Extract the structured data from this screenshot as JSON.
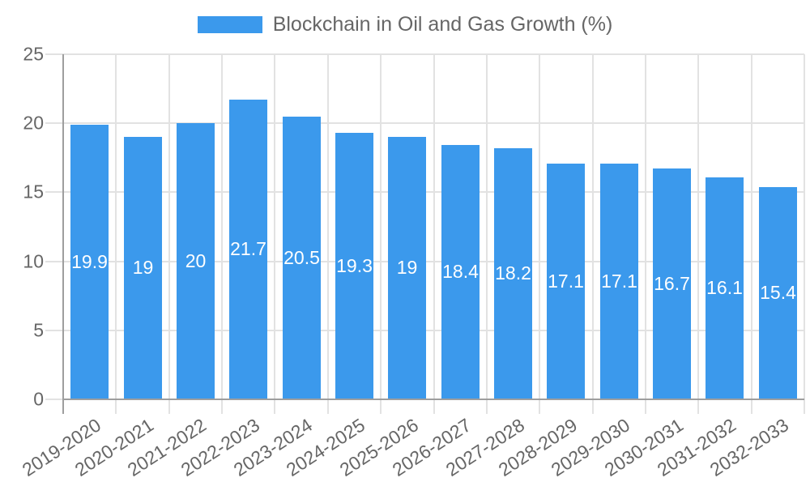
{
  "chart_data": {
    "type": "bar",
    "title": "Blockchain in Oil and Gas Growth (%)",
    "legend": {
      "position": "top",
      "entries": [
        "Blockchain in Oil and Gas Growth (%)"
      ]
    },
    "categories": [
      "2019-2020",
      "2020-2021",
      "2021-2022",
      "2022-2023",
      "2023-2024",
      "2024-2025",
      "2025-2026",
      "2026-2027",
      "2027-2028",
      "2028-2029",
      "2029-2030",
      "2030-2031",
      "2031-2032",
      "2032-2033"
    ],
    "values": [
      19.9,
      19,
      20,
      21.7,
      20.5,
      19.3,
      19,
      18.4,
      18.2,
      17.1,
      17.1,
      16.7,
      16.1,
      15.4
    ],
    "value_labels": [
      "19.9",
      "19",
      "20",
      "21.7",
      "20.5",
      "19.3",
      "19",
      "18.4",
      "18.2",
      "17.1",
      "17.1",
      "16.7",
      "16.1",
      "15.4"
    ],
    "xlabel": "",
    "ylabel": "",
    "ylim": [
      0,
      25
    ],
    "y_ticks": [
      0,
      5,
      10,
      15,
      20,
      25
    ],
    "grid": true,
    "bar_label_position": "center",
    "x_tick_rotation_deg": -33,
    "colors": {
      "bar": "#3b99ec",
      "bar_label": "#ffffff",
      "grid_line": "#e2e2e2",
      "axis_line": "#9e9e9e",
      "tick_text": "#666666",
      "title_text": "#666666",
      "background": "#ffffff"
    }
  }
}
